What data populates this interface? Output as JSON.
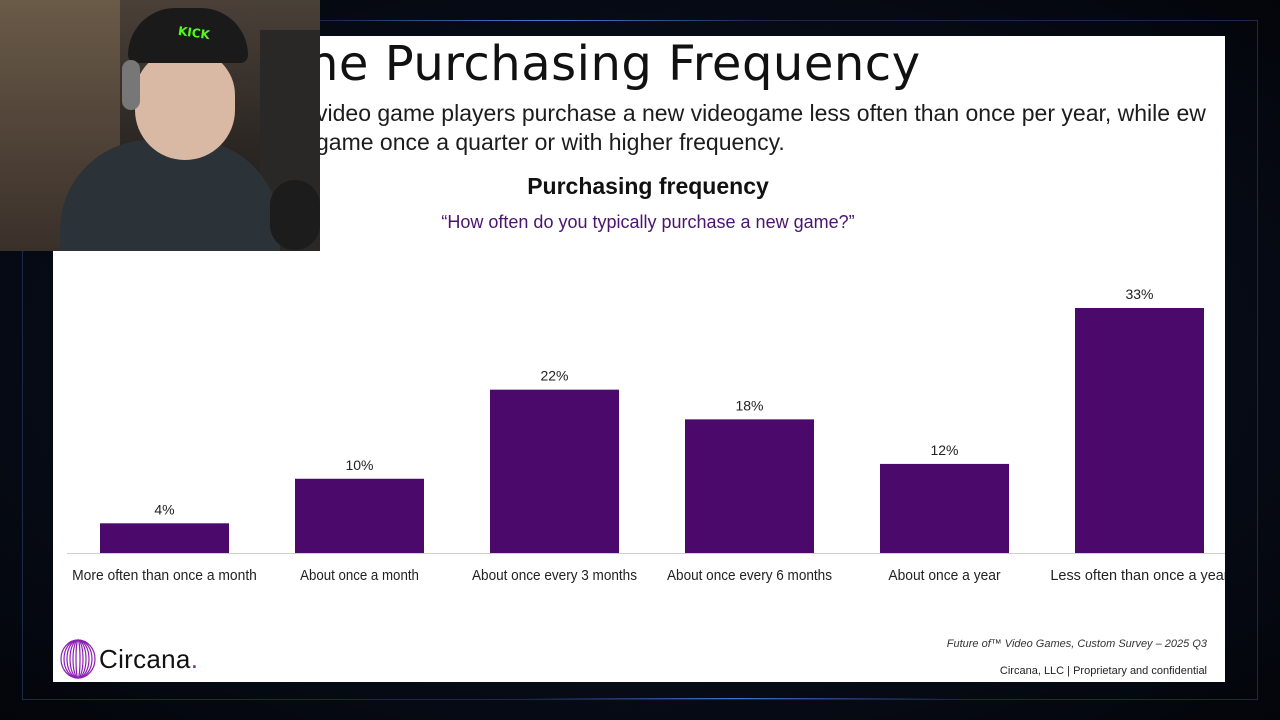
{
  "slide": {
    "title": "ne Purchasing Frequency",
    "subtitle": "video game players purchase a new videogame less often than once per year, while ew game once a quarter or with higher frequency.",
    "source": "Future of™ Video Games, Custom Survey – 2025 Q3",
    "footer": "Circana, LLC |  Proprietary and confidential",
    "logo_text": "Circana",
    "logo_dot": ".",
    "colors": {
      "bar": "#4b0a6b",
      "question": "#4b1470"
    }
  },
  "webcam": {
    "cap_logo": "KICK"
  },
  "chart_data": {
    "type": "bar",
    "title": "Purchasing frequency",
    "subtitle": "“How often do you typically purchase a new game?”",
    "categories": [
      "More often than once a month",
      "About once a month",
      "About once every 3 months",
      "About once every 6 months",
      "About once a year",
      "Less often than once a year"
    ],
    "values": [
      4,
      10,
      22,
      18,
      12,
      33
    ],
    "value_labels": [
      "4%",
      "10%",
      "22%",
      "18%",
      "12%",
      "33%"
    ],
    "ylim": [
      0,
      33
    ],
    "grid": false,
    "legend": "none",
    "bar_color": "#4b0a6b"
  }
}
